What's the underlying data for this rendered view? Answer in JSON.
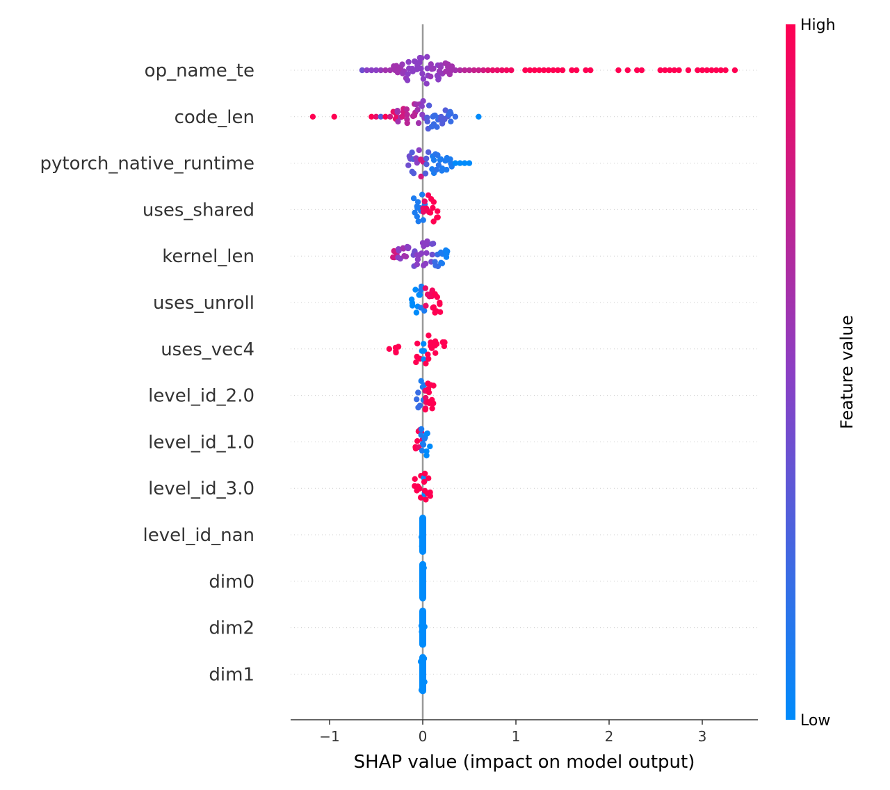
{
  "chart_data": {
    "type": "scatter",
    "subtype": "shap-beeswarm",
    "xlabel": "SHAP value (impact on model output)",
    "x_ticks": [
      "−1",
      "0",
      "1",
      "2",
      "3"
    ],
    "xlim": [
      -1.42,
      3.57
    ],
    "zero_line": true,
    "horizontal_grid": "dotted",
    "features": [
      {
        "name": "op_name_te",
        "points": [
          [
            -0.65,
            0.4
          ],
          [
            -0.6,
            0.5
          ],
          [
            -0.55,
            0.5
          ],
          [
            -0.5,
            0.5
          ],
          [
            -0.45,
            0.55
          ],
          [
            -0.4,
            0.6
          ],
          [
            -0.35,
            0.6
          ],
          [
            -0.3,
            0.6
          ],
          [
            -0.25,
            0.6
          ],
          [
            -0.2,
            0.55
          ],
          [
            -0.15,
            0.5
          ],
          [
            -0.1,
            0.5
          ],
          [
            -0.05,
            0.5
          ],
          [
            0,
            0.5
          ],
          [
            0.05,
            0.5
          ],
          [
            0.1,
            0.55
          ],
          [
            0.15,
            0.5
          ],
          [
            0.2,
            0.55
          ],
          [
            0.25,
            0.6
          ],
          [
            0.3,
            0.6
          ],
          [
            0.35,
            0.6
          ],
          [
            0.4,
            0.65
          ],
          [
            0.45,
            0.7
          ],
          [
            0.5,
            0.7
          ],
          [
            0.55,
            0.75
          ],
          [
            0.6,
            0.75
          ],
          [
            0.65,
            0.8
          ],
          [
            0.7,
            0.85
          ],
          [
            0.75,
            0.9
          ],
          [
            0.8,
            0.9
          ],
          [
            0.85,
            0.92
          ],
          [
            0.9,
            0.95
          ],
          [
            0.95,
            0.95
          ],
          [
            1.1,
            1
          ],
          [
            1.15,
            1
          ],
          [
            1.2,
            1
          ],
          [
            1.25,
            1
          ],
          [
            1.3,
            1
          ],
          [
            1.35,
            1
          ],
          [
            1.4,
            1
          ],
          [
            1.45,
            1
          ],
          [
            1.5,
            1
          ],
          [
            1.6,
            1
          ],
          [
            1.65,
            1
          ],
          [
            1.75,
            1
          ],
          [
            1.8,
            1
          ],
          [
            2.1,
            1
          ],
          [
            2.2,
            1
          ],
          [
            2.3,
            1
          ],
          [
            2.35,
            1
          ],
          [
            2.55,
            1
          ],
          [
            2.6,
            1
          ],
          [
            2.65,
            1
          ],
          [
            2.7,
            1
          ],
          [
            2.75,
            1
          ],
          [
            2.85,
            1
          ],
          [
            2.95,
            1
          ],
          [
            3,
            1
          ],
          [
            3.05,
            1
          ],
          [
            3.1,
            1
          ],
          [
            3.15,
            1
          ],
          [
            3.2,
            1
          ],
          [
            3.25,
            1
          ],
          [
            3.35,
            1
          ]
        ]
      },
      {
        "name": "code_len",
        "points": [
          [
            -1.18,
            1
          ],
          [
            -0.95,
            1
          ],
          [
            -0.55,
            1
          ],
          [
            -0.5,
            0.9
          ],
          [
            -0.45,
            0.3
          ],
          [
            -0.4,
            1
          ],
          [
            -0.35,
            0.8
          ],
          [
            -0.3,
            0.9
          ],
          [
            -0.25,
            0.6
          ],
          [
            -0.2,
            0.8
          ],
          [
            -0.15,
            0.7
          ],
          [
            -0.1,
            0.7
          ],
          [
            -0.05,
            0.6
          ],
          [
            0,
            0.5
          ],
          [
            0.05,
            0.3
          ],
          [
            0.1,
            0.2
          ],
          [
            0.15,
            0.2
          ],
          [
            0.2,
            0.3
          ],
          [
            0.25,
            0.3
          ],
          [
            0.3,
            0.2
          ],
          [
            0.35,
            0.2
          ],
          [
            0.6,
            0
          ]
        ]
      },
      {
        "name": "pytorch_native_runtime",
        "points": [
          [
            -0.15,
            0.4
          ],
          [
            -0.1,
            0.3
          ],
          [
            -0.05,
            0.5
          ],
          [
            0,
            0.8
          ],
          [
            0.05,
            0.3
          ],
          [
            0.1,
            0.1
          ],
          [
            0.15,
            0.15
          ],
          [
            0.2,
            0.1
          ],
          [
            0.25,
            0.1
          ],
          [
            0.3,
            0.1
          ],
          [
            0.35,
            0
          ],
          [
            0.4,
            0
          ],
          [
            0.45,
            0
          ],
          [
            0.5,
            0
          ]
        ]
      },
      {
        "name": "uses_shared",
        "points": [
          [
            -0.08,
            0.1
          ],
          [
            -0.04,
            0.1
          ],
          [
            0,
            0.1
          ],
          [
            0.02,
            0.9
          ],
          [
            0.06,
            0.95
          ],
          [
            0.1,
            1
          ],
          [
            0.14,
            1
          ]
        ]
      },
      {
        "name": "kernel_len",
        "points": [
          [
            -0.3,
            0.8
          ],
          [
            -0.25,
            0.5
          ],
          [
            -0.2,
            0.6
          ],
          [
            -0.15,
            0.5
          ],
          [
            -0.1,
            0.4
          ],
          [
            -0.05,
            0.5
          ],
          [
            0,
            0.5
          ],
          [
            0.05,
            0.5
          ],
          [
            0.1,
            0.4
          ],
          [
            0.15,
            0.2
          ],
          [
            0.2,
            0.1
          ],
          [
            0.25,
            0.05
          ]
        ]
      },
      {
        "name": "uses_unroll",
        "points": [
          [
            -0.1,
            0
          ],
          [
            -0.05,
            0
          ],
          [
            0,
            0.1
          ],
          [
            0.05,
            0.9
          ],
          [
            0.1,
            0.95
          ],
          [
            0.14,
            1
          ],
          [
            0.17,
            1
          ]
        ]
      },
      {
        "name": "uses_vec4",
        "points": [
          [
            -0.36,
            1
          ],
          [
            -0.28,
            1
          ],
          [
            -0.05,
            1
          ],
          [
            0,
            0
          ],
          [
            0.05,
            1
          ],
          [
            0.1,
            1
          ],
          [
            0.15,
            1
          ],
          [
            0.23,
            1
          ]
        ]
      },
      {
        "name": "level_id_2.0",
        "points": [
          [
            -0.05,
            0.2
          ],
          [
            0,
            0.1
          ],
          [
            0.02,
            0.9
          ],
          [
            0.05,
            1
          ],
          [
            0.08,
            1
          ],
          [
            0.1,
            1
          ]
        ]
      },
      {
        "name": "level_id_1.0",
        "points": [
          [
            -0.06,
            1
          ],
          [
            -0.02,
            0.9
          ],
          [
            0,
            0.1
          ],
          [
            0.03,
            0.1
          ],
          [
            0.06,
            0
          ]
        ]
      },
      {
        "name": "level_id_3.0",
        "points": [
          [
            -0.07,
            1
          ],
          [
            -0.03,
            1
          ],
          [
            0,
            0
          ],
          [
            0.03,
            1
          ],
          [
            0.07,
            1
          ]
        ]
      },
      {
        "name": "level_id_nan",
        "points": [
          [
            0,
            0
          ]
        ]
      },
      {
        "name": "dim0",
        "points": [
          [
            0,
            0
          ]
        ]
      },
      {
        "name": "dim2",
        "points": [
          [
            0,
            0
          ]
        ]
      },
      {
        "name": "dim1",
        "points": [
          [
            0,
            0
          ]
        ]
      }
    ],
    "colorbar": {
      "title": "Feature value",
      "high_label": "High",
      "low_label": "Low",
      "low_color": "#008bfb",
      "mid_color": "#8b3fc4",
      "high_color": "#ff0052"
    }
  }
}
